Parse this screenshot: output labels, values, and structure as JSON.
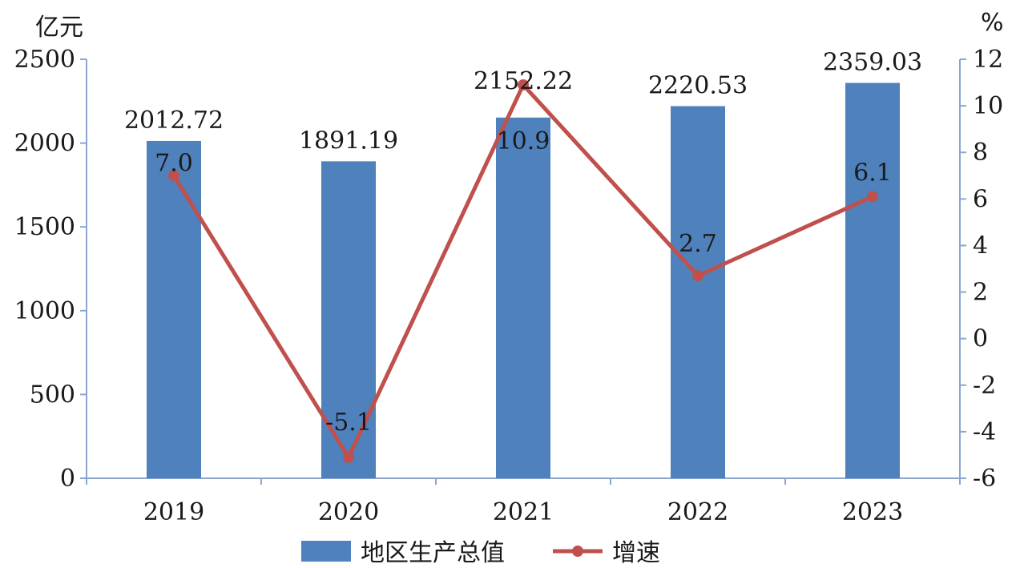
{
  "chart_data": {
    "type": "bar",
    "categories": [
      "2019",
      "2020",
      "2021",
      "2022",
      "2023"
    ],
    "series": [
      {
        "name": "地区生产总值",
        "type": "bar",
        "axis": "left",
        "color": "#4f81bd",
        "values": [
          2012.72,
          1891.19,
          2152.22,
          2220.53,
          2359.03
        ],
        "labels": [
          "2012.72",
          "1891.19",
          "2152.22",
          "2220.53",
          "2359.03"
        ]
      },
      {
        "name": "增速",
        "type": "line",
        "axis": "right",
        "color": "#c0504d",
        "values": [
          7.0,
          -5.1,
          10.9,
          2.7,
          6.1
        ],
        "labels": [
          "7.0",
          "-5.1",
          "10.9",
          "2.7",
          "6.1"
        ]
      }
    ],
    "y_left": {
      "unit": "亿元",
      "ylim": [
        0,
        2500
      ],
      "ticks": [
        0,
        500,
        1000,
        1500,
        2000,
        2500
      ],
      "tick_labels": [
        "0",
        "500",
        "1000",
        "1500",
        "2000",
        "2500"
      ]
    },
    "y_right": {
      "unit": "%",
      "ylim": [
        -6,
        12
      ],
      "ticks": [
        -6,
        -4,
        -2,
        0,
        2,
        4,
        6,
        8,
        10,
        12
      ],
      "tick_labels": [
        "-6",
        "-4",
        "-2",
        "0",
        "2",
        "4",
        "6",
        "8",
        "10",
        "12"
      ]
    },
    "grid": false,
    "legend_position": "bottom"
  }
}
